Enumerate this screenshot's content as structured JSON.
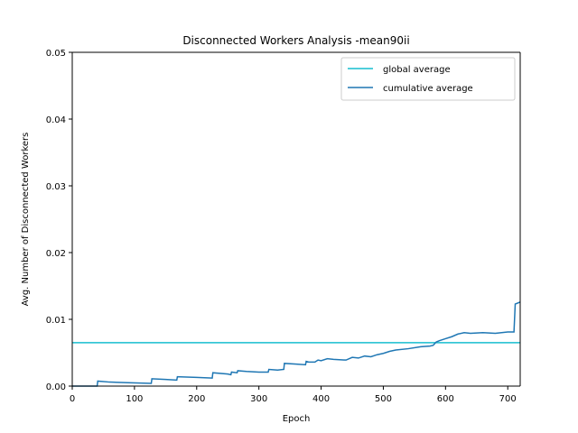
{
  "chart_data": {
    "type": "line",
    "title": "Disconnected Workers Analysis -mean90ii",
    "xlabel": "Epoch",
    "ylabel": "Avg. Number of Disconnected Workers",
    "xlim": [
      0,
      720
    ],
    "ylim": [
      0,
      0.05
    ],
    "xticks": [
      0,
      100,
      200,
      300,
      400,
      500,
      600,
      700
    ],
    "xtick_labels": [
      "0",
      "100",
      "200",
      "300",
      "400",
      "500",
      "600",
      "700"
    ],
    "yticks": [
      0,
      0.01,
      0.02,
      0.03,
      0.04,
      0.05
    ],
    "ytick_labels": [
      "0.00",
      "0.01",
      "0.02",
      "0.03",
      "0.04",
      "0.05"
    ],
    "grid": false,
    "legend_position": "top-right",
    "colors": {
      "global": "#17becf",
      "cumulative": "#1f77b4"
    },
    "series": [
      {
        "name": "global average",
        "x": [
          0,
          720
        ],
        "y": [
          0.0065,
          0.0065
        ]
      },
      {
        "name": "cumulative average",
        "x": [
          0,
          40,
          41,
          60,
          90,
          127,
          128,
          150,
          168,
          169,
          200,
          225,
          226,
          250,
          255,
          256,
          265,
          266,
          280,
          300,
          315,
          316,
          330,
          340,
          341,
          360,
          375,
          376,
          380,
          390,
          395,
          400,
          410,
          420,
          440,
          450,
          460,
          470,
          480,
          490,
          500,
          510,
          520,
          540,
          560,
          575,
          580,
          585,
          590,
          600,
          610,
          620,
          630,
          640,
          660,
          680,
          700,
          710,
          712,
          715,
          720
        ],
        "y": [
          0.0,
          0.0,
          0.00075,
          0.0006,
          0.0005,
          0.0004,
          0.0011,
          0.001,
          0.0009,
          0.0014,
          0.0013,
          0.0012,
          0.002,
          0.0018,
          0.0017,
          0.0021,
          0.002,
          0.0023,
          0.0022,
          0.0021,
          0.0021,
          0.0025,
          0.0024,
          0.0025,
          0.0034,
          0.0033,
          0.0032,
          0.0037,
          0.0036,
          0.0036,
          0.0039,
          0.0038,
          0.0041,
          0.004,
          0.0039,
          0.0043,
          0.0042,
          0.0045,
          0.0044,
          0.0047,
          0.0049,
          0.0052,
          0.0054,
          0.0056,
          0.0059,
          0.006,
          0.0061,
          0.0066,
          0.0068,
          0.0071,
          0.0074,
          0.0078,
          0.008,
          0.0079,
          0.008,
          0.0079,
          0.0081,
          0.0081,
          0.0123,
          0.0124,
          0.0126
        ]
      }
    ]
  }
}
